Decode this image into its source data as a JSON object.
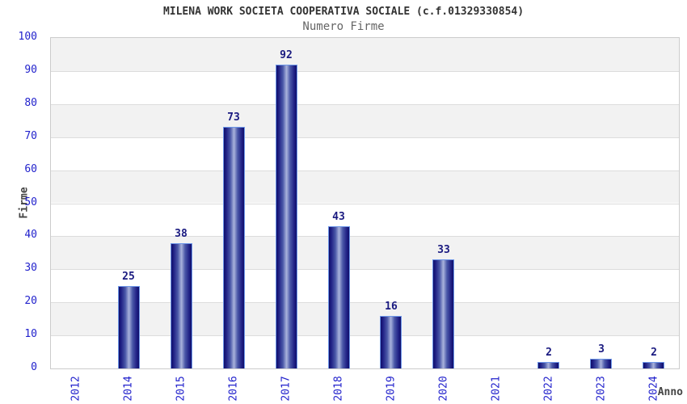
{
  "chart_data": {
    "type": "bar",
    "title": "MILENA WORK SOCIETA COOPERATIVA SOCIALE (c.f.01329330854)",
    "subtitle": "Numero Firme",
    "xlabel": "Anno",
    "ylabel": "Firme",
    "categories": [
      "2012",
      "2014",
      "2015",
      "2016",
      "2017",
      "2018",
      "2019",
      "2020",
      "2021",
      "2022",
      "2023",
      "2024"
    ],
    "values": [
      null,
      25,
      38,
      73,
      92,
      43,
      16,
      33,
      null,
      2,
      3,
      2
    ],
    "ylim": [
      0,
      100
    ],
    "ytick_step": 10,
    "grid": true,
    "legend": false,
    "band_stripes": true,
    "colors": {
      "tick_label": "#2222cc",
      "value_label": "#1a1a80",
      "title": "#333333",
      "subtitle": "#666666",
      "axis_title": "#444444",
      "bar_dark": "#10106a",
      "bar_light": "#a9b3dc",
      "bar_border": "#6d96e8",
      "stripe": "#f2f2f2",
      "gridline": "#dcdcdc",
      "plot_border": "#cccccc"
    }
  }
}
